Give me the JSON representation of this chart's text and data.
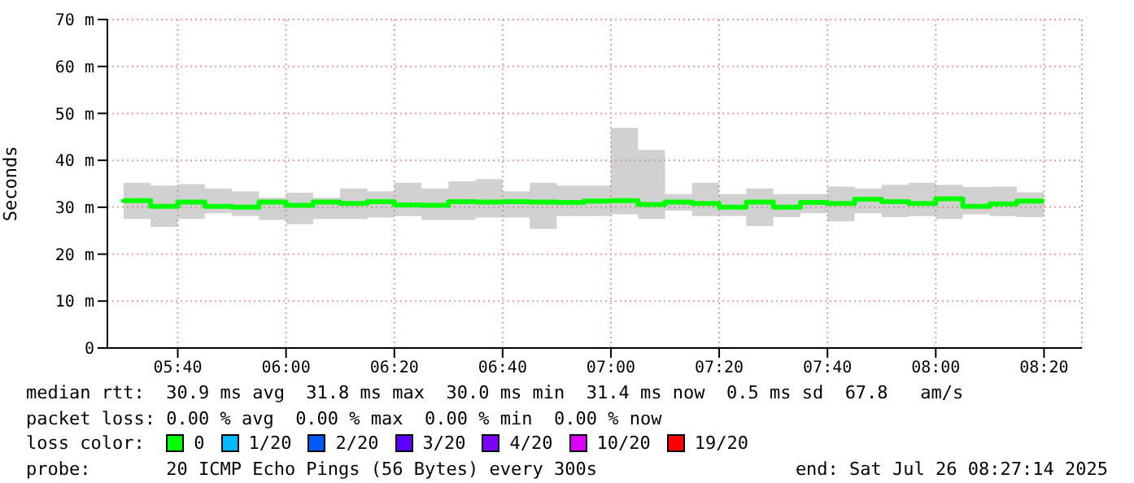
{
  "chart_data": {
    "type": "step",
    "ylabel": "Seconds",
    "legend_title": "loss color:",
    "legend": "bottom",
    "grid": true,
    "marker": "none",
    "line_style": "solid",
    "x": [
      "2025-07-26T05:30",
      "2025-07-26T05:35",
      "2025-07-26T05:40",
      "2025-07-26T05:45",
      "2025-07-26T05:50",
      "2025-07-26T05:55",
      "2025-07-26T06:00",
      "2025-07-26T06:05",
      "2025-07-26T06:10",
      "2025-07-26T06:15",
      "2025-07-26T06:20",
      "2025-07-26T06:25",
      "2025-07-26T06:30",
      "2025-07-26T06:35",
      "2025-07-26T06:40",
      "2025-07-26T06:45",
      "2025-07-26T06:50",
      "2025-07-26T06:55",
      "2025-07-26T07:00",
      "2025-07-26T07:05",
      "2025-07-26T07:10",
      "2025-07-26T07:15",
      "2025-07-26T07:20",
      "2025-07-26T07:25",
      "2025-07-26T07:30",
      "2025-07-26T07:35",
      "2025-07-26T07:40",
      "2025-07-26T07:45",
      "2025-07-26T07:50",
      "2025-07-26T07:55",
      "2025-07-26T08:00",
      "2025-07-26T08:05",
      "2025-07-26T08:10",
      "2025-07-26T08:15",
      "2025-07-26T08:20"
    ],
    "series": [
      {
        "name": "0",
        "color": "#00ff00",
        "values": [
          31.7,
          31.4,
          30.2,
          31.1,
          30.2,
          30.0,
          31.1,
          30.4,
          31.1,
          30.8,
          31.2,
          30.5,
          30.4,
          31.2,
          31.1,
          31.2,
          31.1,
          31.0,
          31.3,
          31.4,
          30.6,
          31.1,
          30.8,
          30.0,
          31.1,
          30.0,
          31.0,
          30.8,
          31.7,
          31.2,
          30.8,
          31.8,
          30.2,
          30.7,
          31.3
        ],
        "lower": [
          27.8,
          27.5,
          25.8,
          27.5,
          28.7,
          28.1,
          27.3,
          26.4,
          27.5,
          27.5,
          27.8,
          28.1,
          27.3,
          27.3,
          27.8,
          27.8,
          25.4,
          28.1,
          28.1,
          28.5,
          27.5,
          29.3,
          28.1,
          28.1,
          26.0,
          27.9,
          28.7,
          27.0,
          28.7,
          27.9,
          28.1,
          27.5,
          28.5,
          28.1,
          27.9
        ],
        "upper": [
          34.4,
          35.2,
          34.6,
          34.9,
          34.0,
          33.4,
          32.0,
          33.1,
          32.0,
          34.0,
          33.4,
          35.2,
          34.0,
          35.5,
          36.0,
          33.4,
          35.2,
          34.6,
          34.6,
          46.9,
          42.2,
          32.8,
          35.2,
          32.8,
          34.0,
          32.8,
          32.8,
          34.4,
          34.0,
          34.8,
          35.2,
          34.8,
          34.3,
          34.4,
          33.2
        ]
      },
      {
        "name": "1/20",
        "color": "#00b8ff",
        "values": [
          null,
          null,
          null,
          null,
          null,
          null,
          null,
          null,
          null,
          null,
          null,
          null,
          null,
          null,
          null,
          null,
          null,
          null,
          null,
          null,
          null,
          null,
          null,
          null,
          null,
          null,
          null,
          null,
          null,
          null,
          null,
          null,
          null,
          null,
          null
        ]
      },
      {
        "name": "2/20",
        "color": "#0059ff",
        "values": [
          null,
          null,
          null,
          null,
          null,
          null,
          null,
          null,
          null,
          null,
          null,
          null,
          null,
          null,
          null,
          null,
          null,
          null,
          null,
          null,
          null,
          null,
          null,
          null,
          null,
          null,
          null,
          null,
          null,
          null,
          null,
          null,
          null,
          null,
          null
        ]
      },
      {
        "name": "3/20",
        "color": "#5e00ff",
        "values": [
          null,
          null,
          null,
          null,
          null,
          null,
          null,
          null,
          null,
          null,
          null,
          null,
          null,
          null,
          null,
          null,
          null,
          null,
          null,
          null,
          null,
          null,
          null,
          null,
          null,
          null,
          null,
          null,
          null,
          null,
          null,
          null,
          null,
          null,
          null
        ]
      },
      {
        "name": "4/20",
        "color": "#7e00ff",
        "values": [
          null,
          null,
          null,
          null,
          null,
          null,
          null,
          null,
          null,
          null,
          null,
          null,
          null,
          null,
          null,
          null,
          null,
          null,
          null,
          null,
          null,
          null,
          null,
          null,
          null,
          null,
          null,
          null,
          null,
          null,
          null,
          null,
          null,
          null,
          null
        ]
      },
      {
        "name": "10/20",
        "color": "#dd00ff",
        "values": [
          null,
          null,
          null,
          null,
          null,
          null,
          null,
          null,
          null,
          null,
          null,
          null,
          null,
          null,
          null,
          null,
          null,
          null,
          null,
          null,
          null,
          null,
          null,
          null,
          null,
          null,
          null,
          null,
          null,
          null,
          null,
          null,
          null,
          null,
          null
        ]
      },
      {
        "name": "19/20",
        "color": "#ff0000",
        "values": [
          null,
          null,
          null,
          null,
          null,
          null,
          null,
          null,
          null,
          null,
          null,
          null,
          null,
          null,
          null,
          null,
          null,
          null,
          null,
          null,
          null,
          null,
          null,
          null,
          null,
          null,
          null,
          null,
          null,
          null,
          null,
          null,
          null,
          null,
          null
        ]
      }
    ],
    "xlim": [
      "2025-07-26T05:27",
      "2025-07-26T08:27"
    ],
    "xticks": [
      {
        "value": "2025-07-26T05:40",
        "label": "05:40"
      },
      {
        "value": "2025-07-26T06:00",
        "label": "06:00"
      },
      {
        "value": "2025-07-26T06:20",
        "label": "06:20"
      },
      {
        "value": "2025-07-26T06:40",
        "label": "06:40"
      },
      {
        "value": "2025-07-26T07:00",
        "label": "07:00"
      },
      {
        "value": "2025-07-26T07:20",
        "label": "07:20"
      },
      {
        "value": "2025-07-26T07:40",
        "label": "07:40"
      },
      {
        "value": "2025-07-26T08:00",
        "label": "08:00"
      },
      {
        "value": "2025-07-26T08:20",
        "label": "08:20"
      }
    ],
    "ylim": [
      0,
      70
    ],
    "yticks": [
      0,
      {
        "value": 10,
        "label": "10 m"
      },
      {
        "value": 20,
        "label": "20 m"
      },
      {
        "value": 30,
        "label": "30 m"
      },
      {
        "value": 40,
        "label": "40 m"
      },
      {
        "value": 50,
        "label": "50 m"
      },
      {
        "value": 60,
        "label": "60 m"
      },
      {
        "value": 70,
        "label": "70 m"
      }
    ],
    "annotations": [
      "median rtt:  30.9 ms avg  31.8 ms max  30.0 ms min  31.4 ms now  0.5 ms sd  67.8   am/s",
      "packet loss: 0.00 % avg  0.00 % max  0.00 % min  0.00 % now",
      "probe:       20 ICMP Echo Pings (56 Bytes) every 300s",
      "end: Sat Jul 26 08:27:14 2025"
    ]
  }
}
